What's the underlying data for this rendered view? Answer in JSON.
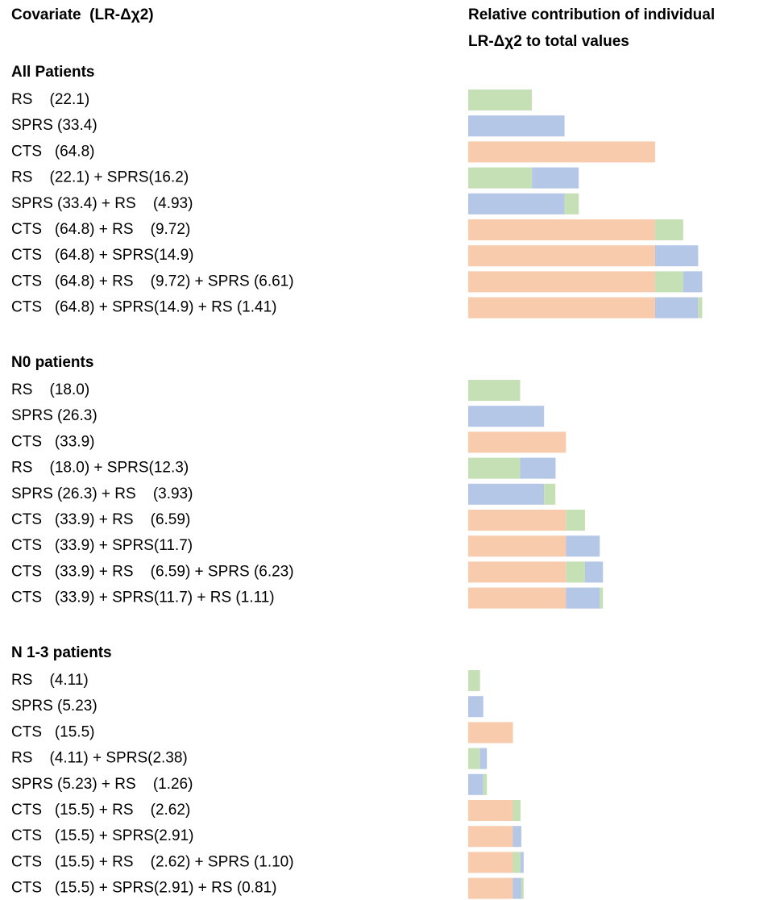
{
  "chart_data": {
    "type": "bar",
    "orientation": "horizontal",
    "stacked": true,
    "title": "Covariate  (LR-Δχ2)",
    "subtitle": [
      "Relative contribution of individual",
      "LR-Δχ2 to total values"
    ],
    "colors": {
      "RS": "#c5e0b4",
      "SPRS": "#b4c7e7",
      "CTS": "#f8cbad"
    },
    "groups": [
      {
        "name": "All Patients",
        "rows": [
          {
            "label": "RS    (22.1)",
            "segments": [
              {
                "key": "RS",
                "value": 22.1
              }
            ]
          },
          {
            "label": "SPRS (33.4)",
            "segments": [
              {
                "key": "SPRS",
                "value": 33.4
              }
            ]
          },
          {
            "label": "CTS   (64.8)",
            "segments": [
              {
                "key": "CTS",
                "value": 64.8
              }
            ]
          },
          {
            "label": "RS    (22.1) + SPRS(16.2)",
            "segments": [
              {
                "key": "RS",
                "value": 22.1
              },
              {
                "key": "SPRS",
                "value": 16.2
              }
            ]
          },
          {
            "label": "SPRS (33.4) + RS    (4.93)",
            "segments": [
              {
                "key": "SPRS",
                "value": 33.4
              },
              {
                "key": "RS",
                "value": 4.93
              }
            ]
          },
          {
            "label": "CTS   (64.8) + RS    (9.72)",
            "segments": [
              {
                "key": "CTS",
                "value": 64.8
              },
              {
                "key": "RS",
                "value": 9.72
              }
            ]
          },
          {
            "label": "CTS   (64.8) + SPRS(14.9)",
            "segments": [
              {
                "key": "CTS",
                "value": 64.8
              },
              {
                "key": "SPRS",
                "value": 14.9
              }
            ]
          },
          {
            "label": "CTS   (64.8) + RS    (9.72) + SPRS (6.61)",
            "segments": [
              {
                "key": "CTS",
                "value": 64.8
              },
              {
                "key": "RS",
                "value": 9.72
              },
              {
                "key": "SPRS",
                "value": 6.61
              }
            ]
          },
          {
            "label": "CTS   (64.8) + SPRS(14.9) + RS (1.41)",
            "segments": [
              {
                "key": "CTS",
                "value": 64.8
              },
              {
                "key": "SPRS",
                "value": 14.9
              },
              {
                "key": "RS",
                "value": 1.41
              }
            ]
          }
        ]
      },
      {
        "name": "N0 patients",
        "rows": [
          {
            "label": "RS    (18.0)",
            "segments": [
              {
                "key": "RS",
                "value": 18.0
              }
            ]
          },
          {
            "label": "SPRS (26.3)",
            "segments": [
              {
                "key": "SPRS",
                "value": 26.3
              }
            ]
          },
          {
            "label": "CTS   (33.9)",
            "segments": [
              {
                "key": "CTS",
                "value": 33.9
              }
            ]
          },
          {
            "label": "RS    (18.0) + SPRS(12.3)",
            "segments": [
              {
                "key": "RS",
                "value": 18.0
              },
              {
                "key": "SPRS",
                "value": 12.3
              }
            ]
          },
          {
            "label": "SPRS (26.3) + RS    (3.93)",
            "segments": [
              {
                "key": "SPRS",
                "value": 26.3
              },
              {
                "key": "RS",
                "value": 3.93
              }
            ]
          },
          {
            "label": "CTS   (33.9) + RS    (6.59)",
            "segments": [
              {
                "key": "CTS",
                "value": 33.9
              },
              {
                "key": "RS",
                "value": 6.59
              }
            ]
          },
          {
            "label": "CTS   (33.9) + SPRS(11.7)",
            "segments": [
              {
                "key": "CTS",
                "value": 33.9
              },
              {
                "key": "SPRS",
                "value": 11.7
              }
            ]
          },
          {
            "label": "CTS   (33.9) + RS    (6.59) + SPRS (6.23)",
            "segments": [
              {
                "key": "CTS",
                "value": 33.9
              },
              {
                "key": "RS",
                "value": 6.59
              },
              {
                "key": "SPRS",
                "value": 6.23
              }
            ]
          },
          {
            "label": "CTS   (33.9) + SPRS(11.7) + RS (1.11)",
            "segments": [
              {
                "key": "CTS",
                "value": 33.9
              },
              {
                "key": "SPRS",
                "value": 11.7
              },
              {
                "key": "RS",
                "value": 1.11
              }
            ]
          }
        ]
      },
      {
        "name": "N 1-3 patients",
        "rows": [
          {
            "label": "RS    (4.11)",
            "segments": [
              {
                "key": "RS",
                "value": 4.11
              }
            ]
          },
          {
            "label": "SPRS (5.23)",
            "segments": [
              {
                "key": "SPRS",
                "value": 5.23
              }
            ]
          },
          {
            "label": "CTS   (15.5)",
            "segments": [
              {
                "key": "CTS",
                "value": 15.5
              }
            ]
          },
          {
            "label": "RS    (4.11) + SPRS(2.38)",
            "segments": [
              {
                "key": "RS",
                "value": 4.11
              },
              {
                "key": "SPRS",
                "value": 2.38
              }
            ]
          },
          {
            "label": "SPRS (5.23) + RS    (1.26)",
            "segments": [
              {
                "key": "SPRS",
                "value": 5.23
              },
              {
                "key": "RS",
                "value": 1.26
              }
            ]
          },
          {
            "label": "CTS   (15.5) + RS    (2.62)",
            "segments": [
              {
                "key": "CTS",
                "value": 15.5
              },
              {
                "key": "RS",
                "value": 2.62
              }
            ]
          },
          {
            "label": "CTS   (15.5) + SPRS(2.91)",
            "segments": [
              {
                "key": "CTS",
                "value": 15.5
              },
              {
                "key": "SPRS",
                "value": 2.91
              }
            ]
          },
          {
            "label": "CTS   (15.5) + RS    (2.62) + SPRS (1.10)",
            "segments": [
              {
                "key": "CTS",
                "value": 15.5
              },
              {
                "key": "RS",
                "value": 2.62
              },
              {
                "key": "SPRS",
                "value": 1.1
              }
            ]
          },
          {
            "label": "CTS   (15.5) + SPRS(2.91) + RS (0.81)",
            "segments": [
              {
                "key": "CTS",
                "value": 15.5
              },
              {
                "key": "SPRS",
                "value": 2.91
              },
              {
                "key": "RS",
                "value": 0.81
              }
            ]
          }
        ]
      }
    ]
  }
}
